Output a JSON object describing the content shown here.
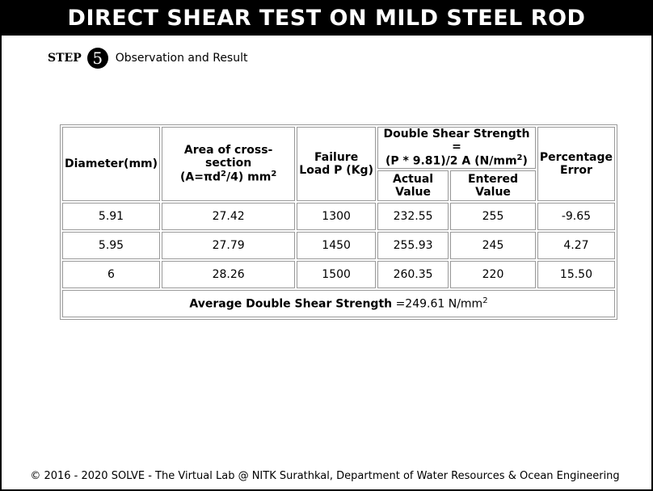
{
  "title": "DIRECT SHEAR TEST ON MILD STEEL ROD",
  "step": {
    "word": "STEP",
    "number": "5",
    "label": "Observation and Result"
  },
  "table": {
    "headers": {
      "diameter": "Diameter(mm)",
      "area_line1": "Area of cross-section",
      "area_line2_pre": "(A=πd",
      "area_sup1": "2",
      "area_line2_mid": "/4) mm",
      "area_sup2": "2",
      "load_line1": "Failure",
      "load_line2": "Load P (Kg)",
      "strength_line1": "Double Shear Strength =",
      "strength_line2_pre": "(P * 9.81)/2 A (N/mm",
      "strength_sup": "2",
      "strength_line2_post": ")",
      "actual": "Actual Value",
      "entered": "Entered Value",
      "error_line1": "Percentage",
      "error_line2": "Error"
    },
    "rows": [
      {
        "diameter": "5.91",
        "area": "27.42",
        "load": "1300",
        "actual": "232.55",
        "entered": "255",
        "error": "-9.65"
      },
      {
        "diameter": "5.95",
        "area": "27.79",
        "load": "1450",
        "actual": "255.93",
        "entered": "245",
        "error": "4.27"
      },
      {
        "diameter": "6",
        "area": "28.26",
        "load": "1500",
        "actual": "260.35",
        "entered": "220",
        "error": "15.50"
      }
    ],
    "average": {
      "label": "Average Double Shear Strength",
      "value": "=249.61 N/mm",
      "sup": "2"
    }
  },
  "footer": "© 2016 - 2020 SOLVE - The Virtual Lab @ NITK Surathkal, Department of Water Resources & Ocean Engineering"
}
